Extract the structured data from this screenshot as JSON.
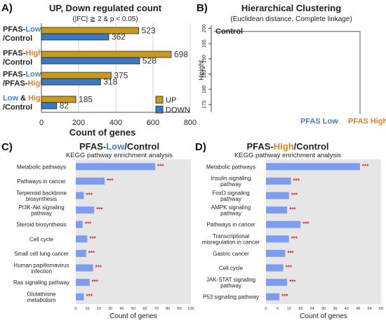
{
  "panels": {
    "a": "A)",
    "b": "B)",
    "c": "C)",
    "d": "D)"
  },
  "colors": {
    "up": "#c79a1b",
    "down": "#3d78c2",
    "low": "#4b7fc4",
    "high": "#d9822b",
    "kegg_bar": "#7e9df0",
    "sig": "#e02020",
    "kegg_bg": "#e6e6e6"
  },
  "chart_data": [
    {
      "type": "bar",
      "orientation": "horizontal",
      "title": "UP, Down regulated count",
      "subtitle": "(|FC| ≧ 2 & p < 0.05)",
      "xlabel": "Count of genes",
      "xlim": [
        0,
        800
      ],
      "xticks": [
        "0",
        "200",
        "400",
        "600",
        "800"
      ],
      "categories": [
        {
          "lines": [
            [
              {
                "t": "PFAS-",
                "c": "text"
              },
              {
                "t": "Low",
                "c": "low"
              }
            ],
            [
              {
                "t": "/Control",
                "c": "text"
              }
            ]
          ]
        },
        {
          "lines": [
            [
              {
                "t": "PFAS-",
                "c": "text"
              },
              {
                "t": "High",
                "c": "high"
              }
            ],
            [
              {
                "t": "/Control",
                "c": "text"
              }
            ]
          ]
        },
        {
          "lines": [
            [
              {
                "t": "PFAS-",
                "c": "text"
              },
              {
                "t": "Low",
                "c": "low"
              }
            ],
            [
              {
                "t": "/PFAS-",
                "c": "text"
              },
              {
                "t": "High",
                "c": "high"
              }
            ]
          ]
        },
        {
          "lines": [
            [
              {
                "t": "Low",
                "c": "low"
              },
              {
                "t": " & ",
                "c": "text"
              },
              {
                "t": "High",
                "c": "high"
              }
            ],
            [
              {
                "t": "/Control",
                "c": "text"
              }
            ]
          ]
        }
      ],
      "series": [
        {
          "name": "UP",
          "values": [
            523,
            698,
            375,
            185
          ]
        },
        {
          "name": "DOWN",
          "values": [
            362,
            528,
            318,
            82
          ]
        }
      ],
      "legend": "bottom-right"
    },
    {
      "type": "dendrogram",
      "title": "Hierarchical Clustering",
      "subtitle": "(Euclidean distance, Complete linkage)",
      "ylabel": "Height",
      "yticks": [
        "200",
        "195",
        "190",
        "185",
        "180",
        "175"
      ],
      "ylim": [
        172,
        201
      ],
      "merge_height": 199,
      "leaves": [
        "PFAS Low",
        "PFAS High"
      ],
      "label": "Control"
    },
    {
      "type": "bar",
      "orientation": "horizontal",
      "title": [
        {
          "t": "PFAS-",
          "c": "text"
        },
        {
          "t": "Low",
          "c": "low"
        },
        {
          "t": "/Control",
          "c": "text"
        }
      ],
      "subtitle": "KEGG pathway enrichment analysis",
      "xlabel": "Count of genes",
      "xlim": [
        0,
        100
      ],
      "xticks": [
        "0",
        "10",
        "20",
        "30",
        "40",
        "50",
        "60",
        "70",
        "80",
        "90",
        "100"
      ],
      "significance": "***",
      "categories": [
        [
          "Metabolic pathways"
        ],
        [
          "Pathways in cancer"
        ],
        [
          "Terpenoid backbone",
          "biosynthesis"
        ],
        [
          "PI3K-Akt signaling",
          "pathway"
        ],
        [
          "Steroid biosynthesis"
        ],
        [
          "Cell cycle"
        ],
        [
          "Small cell lung cancer"
        ],
        [
          "Human papillomavirus",
          "infection"
        ],
        [
          "Ras signaling pathway"
        ],
        [
          "Glutathione",
          "metabolism"
        ]
      ],
      "values": [
        69,
        25,
        7,
        16,
        6,
        10,
        9,
        15,
        12,
        7
      ],
      "grid": "off"
    },
    {
      "type": "bar",
      "orientation": "horizontal",
      "title": [
        {
          "t": "PFAS-",
          "c": "text"
        },
        {
          "t": "High",
          "c": "high"
        },
        {
          "t": "/Control",
          "c": "text"
        }
      ],
      "subtitle": "KEGG pathway enrichment analysis",
      "xlabel": "Count of genes",
      "xlim": [
        0,
        60
      ],
      "xticks": [
        "0",
        "6",
        "12",
        "18",
        "24",
        "30",
        "36",
        "42",
        "48",
        "54",
        "60"
      ],
      "significance": "***",
      "categories": [
        [
          "Metabolic pathways"
        ],
        [
          "Insulin signaling",
          "pathway"
        ],
        [
          "FoxO signaling",
          "pathway"
        ],
        [
          "AMPK signaling",
          "pathway"
        ],
        [
          "Pathways in cancer"
        ],
        [
          "Transcriptional",
          "misregulation in cancer"
        ],
        [
          "Gastric cancer"
        ],
        [
          "Cell cycle"
        ],
        [
          "JAK-STAT signaling",
          "pathway"
        ],
        [
          "P53 signaling pathway"
        ]
      ],
      "values": [
        49,
        13,
        12,
        11,
        18,
        12,
        10,
        9,
        11,
        7
      ],
      "grid": "off"
    }
  ]
}
